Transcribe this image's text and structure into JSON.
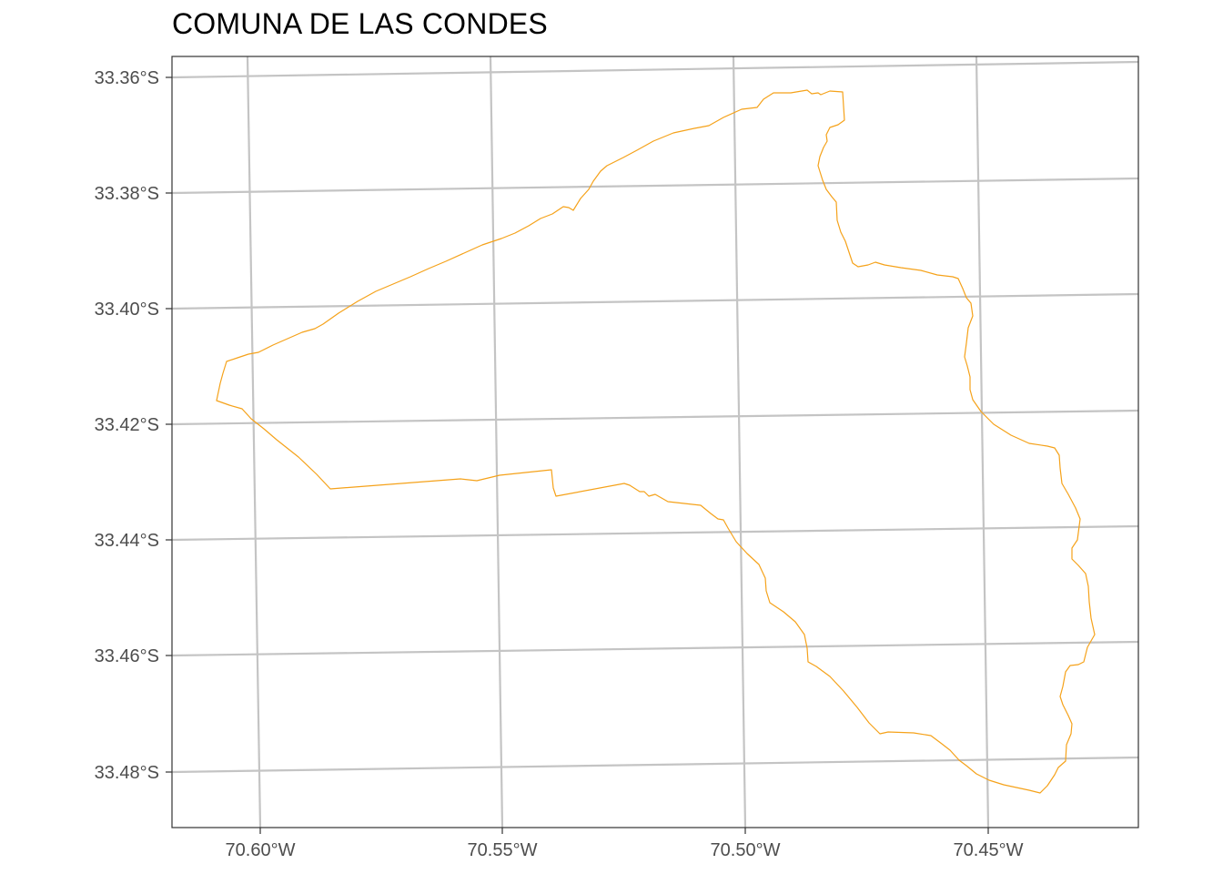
{
  "title": "COMUNA DE LAS CONDES",
  "map": {
    "graticule_color": "#c4c4c4",
    "boundary_color": "#f5a21a",
    "frame_color": "#333333",
    "lat_labels": [
      "33.36°S",
      "33.38°S",
      "33.40°S",
      "33.42°S",
      "33.44°S",
      "33.46°S",
      "33.48°S"
    ],
    "lon_labels": [
      "70.60°W",
      "70.55°W",
      "70.50°W",
      "70.45°W"
    ],
    "lat_values": [
      -33.36,
      -33.38,
      -33.4,
      -33.42,
      -33.44,
      -33.46,
      -33.48
    ],
    "lon_values": [
      -70.6,
      -70.55,
      -70.5,
      -70.45
    ],
    "boundary_name": "Las Condes"
  }
}
